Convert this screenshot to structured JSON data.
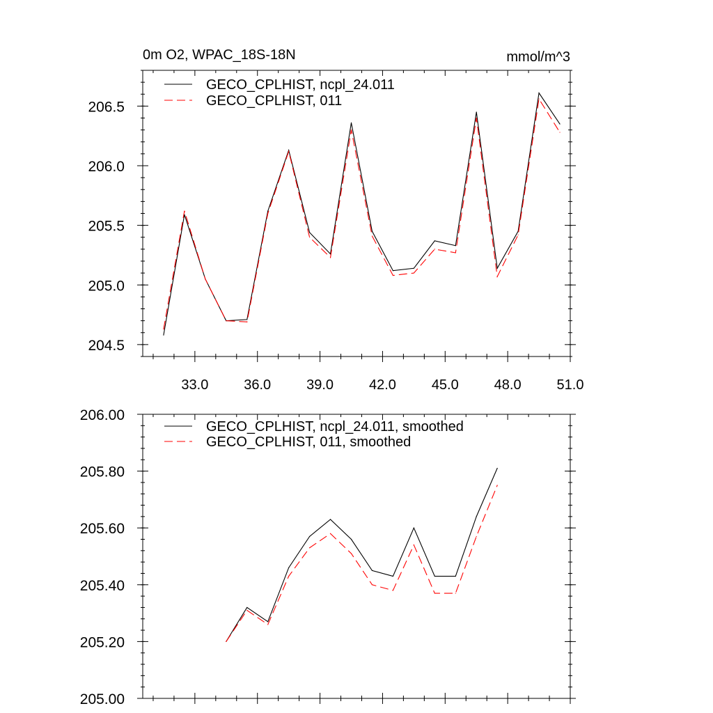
{
  "chart_data": [
    {
      "type": "line",
      "title": "0m O2, WPAC_18S-18N",
      "units": "mmol/m^3",
      "xlim": [
        30.5,
        51.0
      ],
      "ylim": [
        204.4,
        206.8
      ],
      "grid": false,
      "legend_position": "top-left",
      "x_ticks": [
        33.0,
        36.0,
        39.0,
        42.0,
        45.0,
        48.0,
        51.0
      ],
      "x_tick_labels": [
        "33.0",
        "36.0",
        "39.0",
        "42.0",
        "45.0",
        "48.0",
        "51.0"
      ],
      "y_ticks": [
        204.5,
        205.0,
        205.5,
        206.0,
        206.5
      ],
      "y_tick_labels": [
        "204.5",
        "205.0",
        "205.5",
        "206.0",
        "206.5"
      ],
      "x": [
        31.5,
        32.5,
        33.5,
        34.5,
        35.5,
        36.5,
        37.5,
        38.5,
        39.5,
        40.5,
        41.5,
        42.5,
        43.5,
        44.5,
        45.5,
        46.5,
        47.5,
        48.5,
        49.5,
        50.5
      ],
      "series": [
        {
          "name": "GECO_CPLHIST, ncpl_24.011",
          "color": "#000000",
          "dash": "solid",
          "values": [
            204.58,
            205.59,
            205.05,
            204.7,
            204.71,
            205.62,
            206.13,
            205.44,
            205.26,
            206.36,
            205.45,
            205.12,
            205.14,
            205.37,
            205.33,
            206.45,
            205.14,
            205.45,
            206.61,
            206.35
          ]
        },
        {
          "name": "GECO_CPLHIST, 011",
          "color": "#ff0000",
          "dash": "dashed",
          "values": [
            204.63,
            205.62,
            205.05,
            204.7,
            204.69,
            205.6,
            206.12,
            205.4,
            205.23,
            206.3,
            205.41,
            205.08,
            205.1,
            205.3,
            205.27,
            206.4,
            205.07,
            205.42,
            206.56,
            206.28
          ]
        }
      ]
    },
    {
      "type": "line",
      "xlim": [
        30.5,
        51.0
      ],
      "ylim": [
        205.0,
        206.0
      ],
      "grid": false,
      "legend_position": "top-left",
      "x_ticks": [
        33.0,
        36.0,
        39.0,
        42.0,
        45.0,
        48.0,
        51.0
      ],
      "y_ticks": [
        205.0,
        205.2,
        205.4,
        205.6,
        205.8,
        206.0
      ],
      "y_tick_labels": [
        "205.00",
        "205.20",
        "205.40",
        "205.60",
        "205.80",
        "206.00"
      ],
      "x": [
        34.5,
        35.5,
        36.5,
        37.5,
        38.5,
        39.5,
        40.5,
        41.5,
        42.5,
        43.5,
        44.5,
        45.5,
        46.5,
        47.5
      ],
      "series": [
        {
          "name": "GECO_CPLHIST, ncpl_24.011, smoothed",
          "color": "#000000",
          "dash": "solid",
          "values": [
            205.2,
            205.32,
            205.27,
            205.46,
            205.57,
            205.63,
            205.56,
            205.45,
            205.43,
            205.6,
            205.43,
            205.43,
            205.64,
            205.81
          ]
        },
        {
          "name": "GECO_CPLHIST, 011, smoothed",
          "color": "#ff0000",
          "dash": "dashed",
          "values": [
            205.2,
            205.31,
            205.26,
            205.43,
            205.53,
            205.58,
            205.51,
            205.4,
            205.38,
            205.54,
            205.37,
            205.37,
            205.57,
            205.75
          ]
        }
      ]
    }
  ]
}
